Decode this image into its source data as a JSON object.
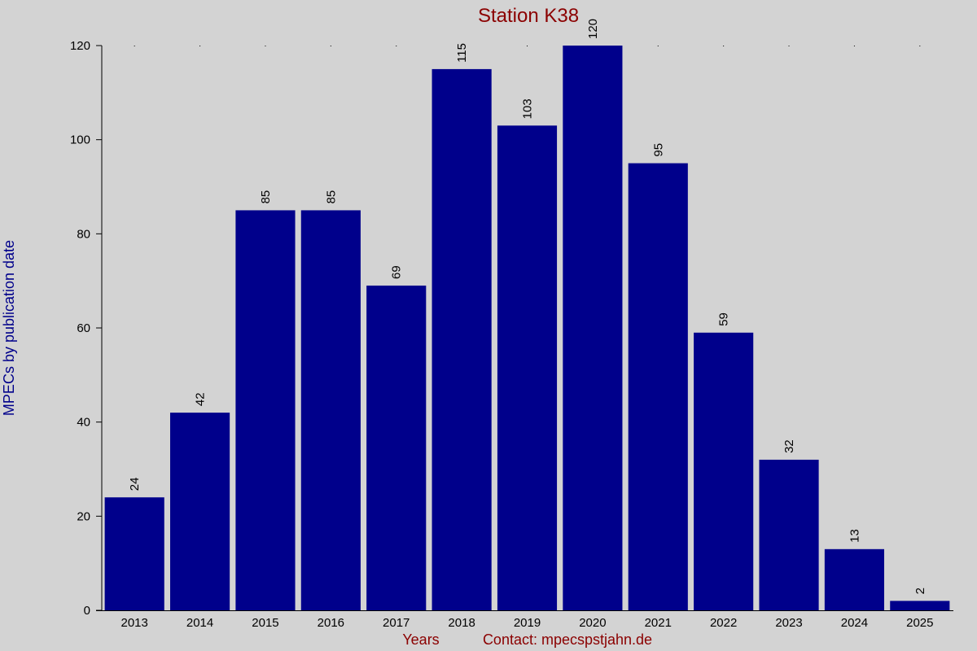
{
  "chart_data": {
    "type": "bar",
    "title": "Station K38",
    "x_label": "Years",
    "y_label": "MPECs by publication date",
    "note": "Contact: mpecspstjahn.de",
    "categories": [
      "2013",
      "2014",
      "2015",
      "2016",
      "2017",
      "2018",
      "2019",
      "2020",
      "2021",
      "2022",
      "2023",
      "2024",
      "2025"
    ],
    "values": [
      24,
      42,
      85,
      85,
      69,
      115,
      103,
      120,
      95,
      59,
      32,
      13,
      2
    ],
    "color": "#00008b",
    "ylim": [
      0,
      120
    ],
    "yticks": [
      0,
      20,
      40,
      60,
      80,
      100,
      120
    ],
    "grid": false
  }
}
